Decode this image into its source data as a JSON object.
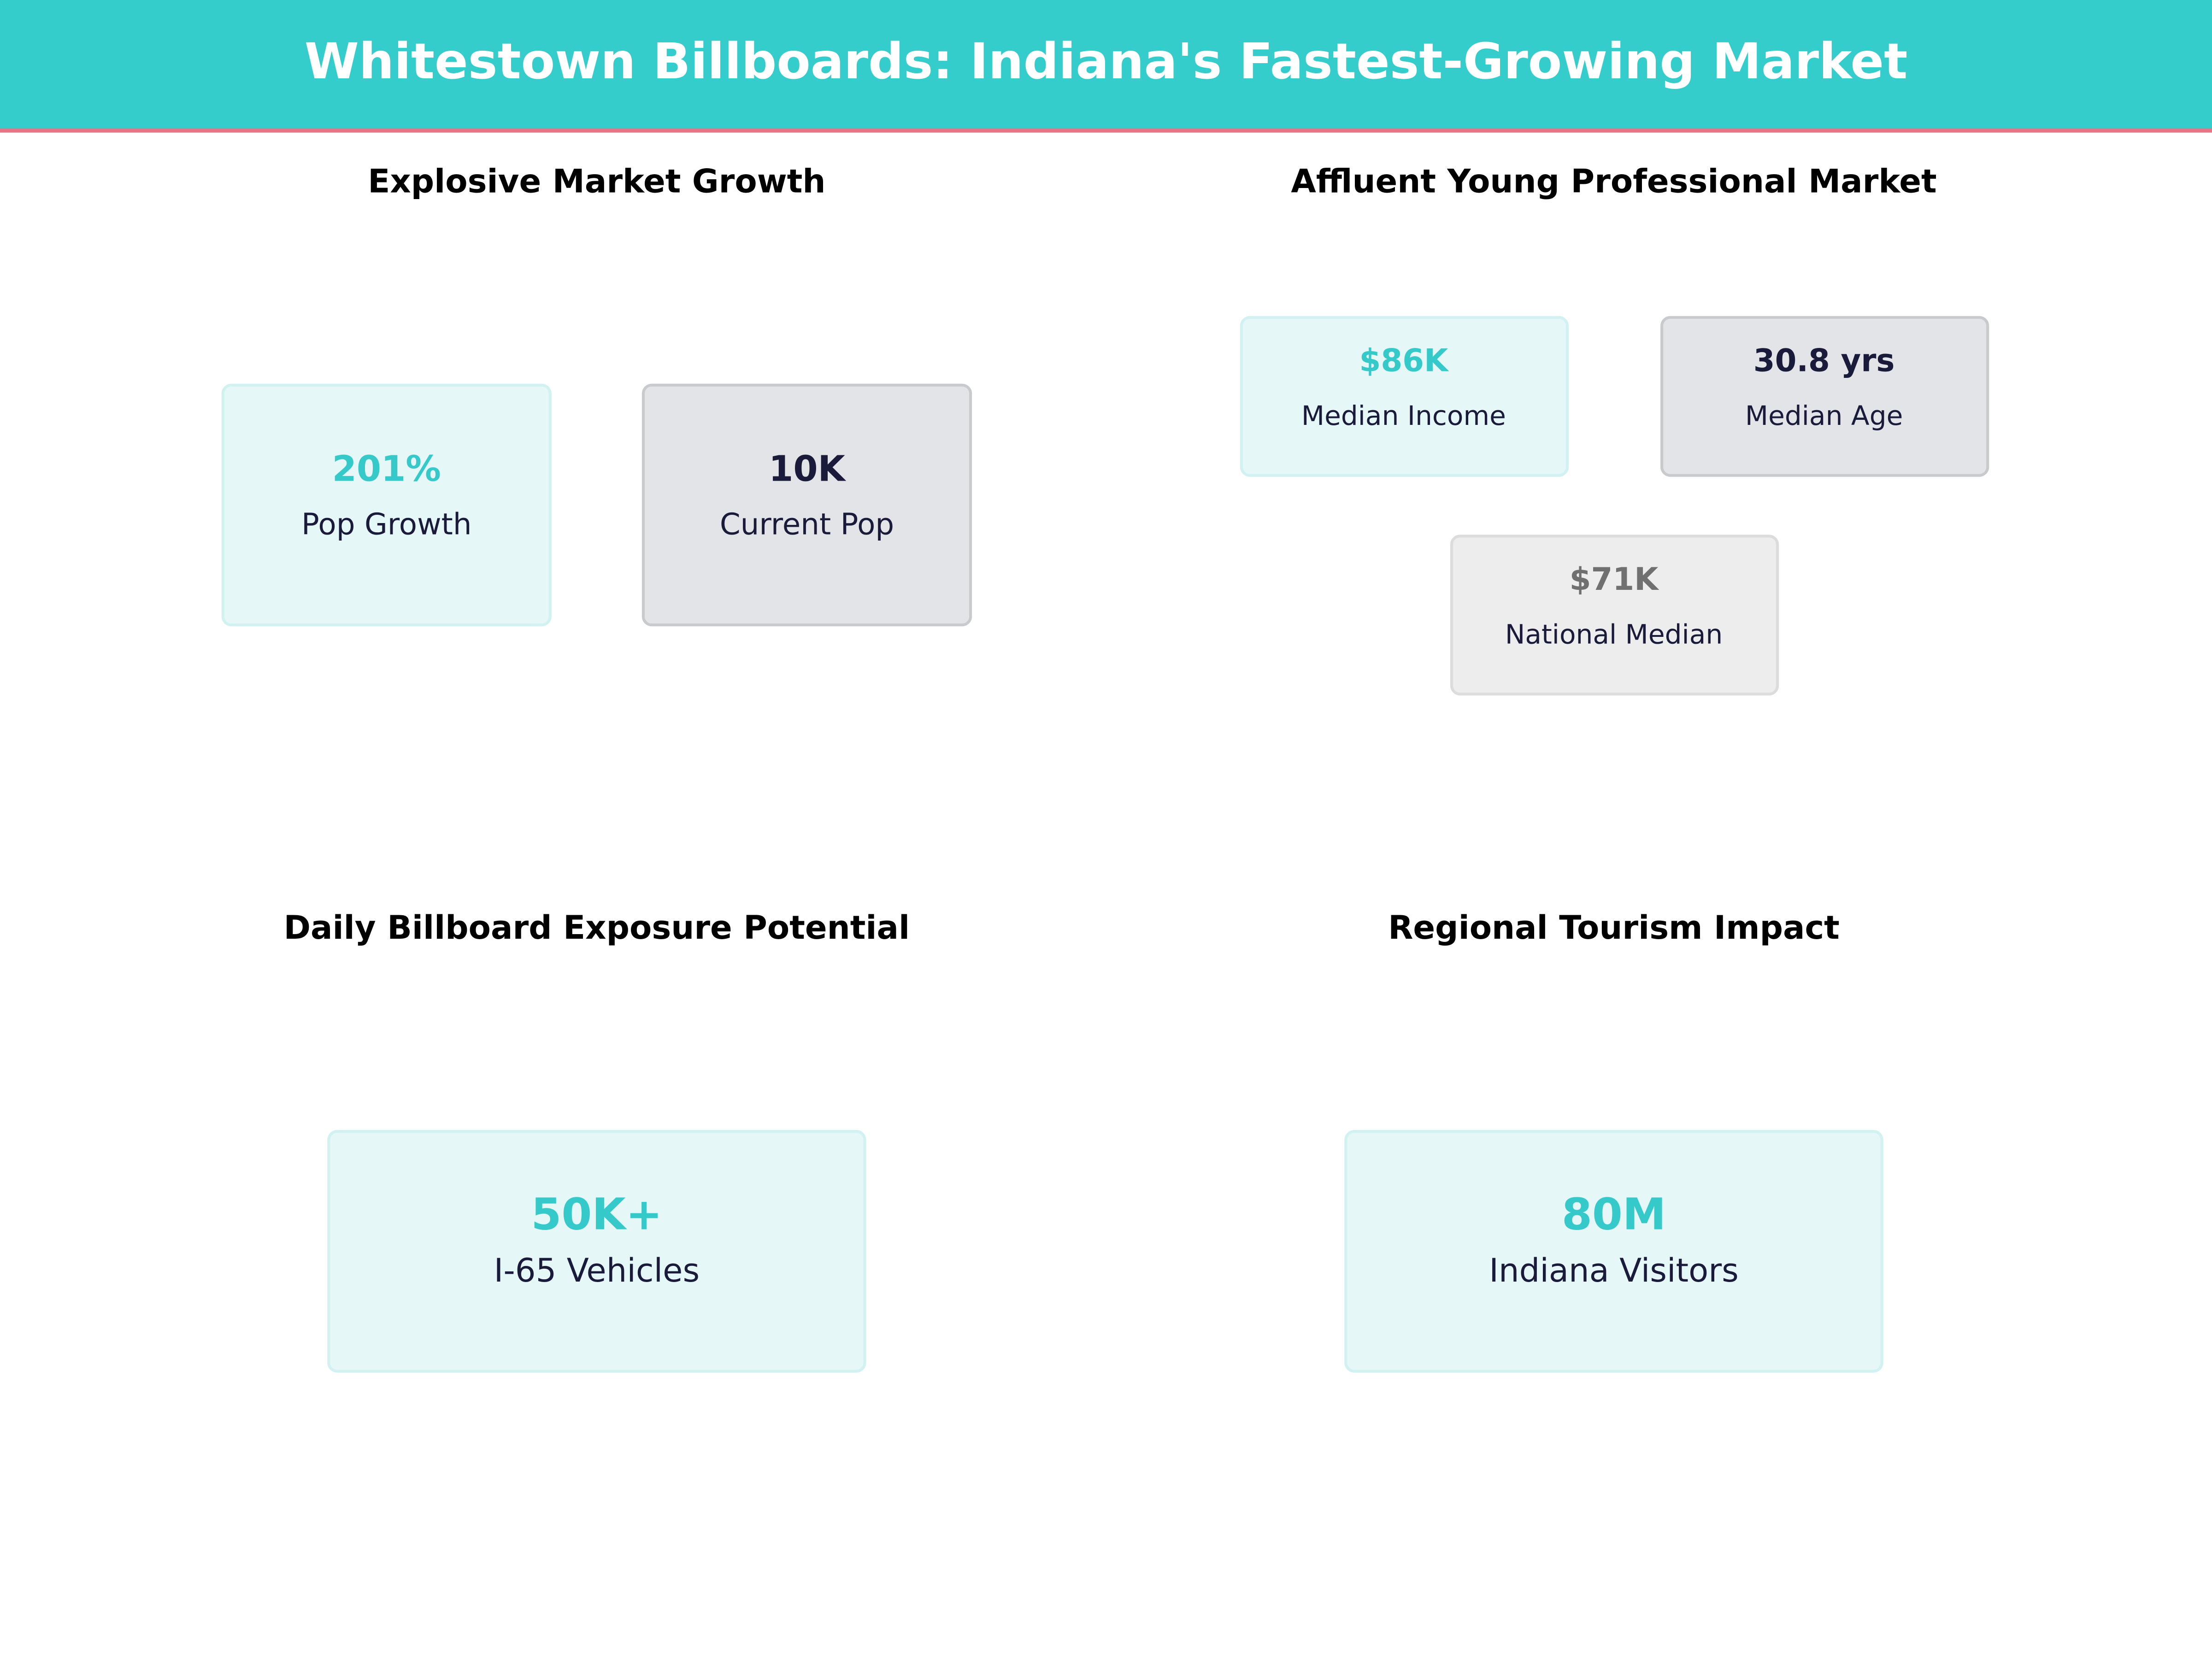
{
  "header": {
    "title": "Whitestown Billboards: Indiana's Fastest-Growing Market"
  },
  "panels": [
    {
      "title": "Explosive Market Growth",
      "cards": [
        {
          "value": "201%",
          "label": "Pop Growth"
        },
        {
          "value": "10K",
          "label": "Current Pop"
        }
      ]
    },
    {
      "title": "Affluent Young Professional Market",
      "cards": [
        {
          "value": "$86K",
          "label": "Median Income"
        },
        {
          "value": "30.8 yrs",
          "label": "Median Age"
        },
        {
          "value": "$71K",
          "label": "National Median"
        }
      ]
    },
    {
      "title": "Daily Billboard Exposure Potential",
      "cards": [
        {
          "value": "50K+",
          "label": "I-65 Vehicles"
        }
      ]
    },
    {
      "title": "Regional Tourism Impact",
      "cards": [
        {
          "value": "80M",
          "label": "Indiana Visitors"
        }
      ]
    }
  ]
}
